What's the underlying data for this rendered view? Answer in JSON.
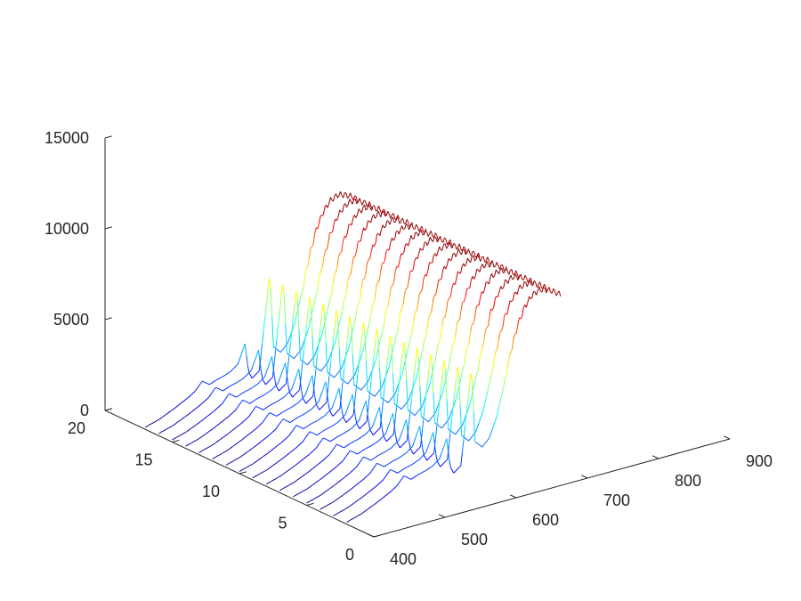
{
  "chart_data": {
    "type": "line",
    "subtype": "3d-waterfall",
    "title": "",
    "xlabel": "",
    "ylabel": "",
    "zlabel": "",
    "grid": false,
    "legend": "none",
    "x_range": [
      400,
      900
    ],
    "y_range": [
      0,
      20
    ],
    "z_range": [
      0,
      15000
    ],
    "x_ticks": [
      400,
      500,
      600,
      700,
      800,
      900
    ],
    "y_ticks": [
      0,
      5,
      10,
      15,
      20
    ],
    "z_ticks": [
      0,
      5000,
      10000,
      15000
    ],
    "colormap": "jet",
    "series_count": 16,
    "series_y": [
      2,
      3,
      4,
      5,
      6,
      7,
      8,
      9,
      10,
      11,
      12,
      13,
      14,
      15,
      16,
      17
    ],
    "spectrum_profile": {
      "wavelength": [
        400,
        420,
        440,
        460,
        470,
        480,
        490,
        500,
        510,
        520,
        530,
        540,
        545,
        550,
        560,
        575,
        580,
        590,
        600,
        610,
        620,
        630,
        640,
        650,
        660,
        670,
        680,
        690,
        700
      ],
      "intensity": [
        120,
        350,
        700,
        1100,
        1350,
        1800,
        1500,
        1650,
        1750,
        1900,
        2200,
        3200,
        1600,
        1200,
        1500,
        6800,
        2600,
        2200,
        2600,
        3600,
        5200,
        7000,
        8400,
        9300,
        9800,
        10000,
        9900,
        9700,
        9400
      ]
    }
  }
}
